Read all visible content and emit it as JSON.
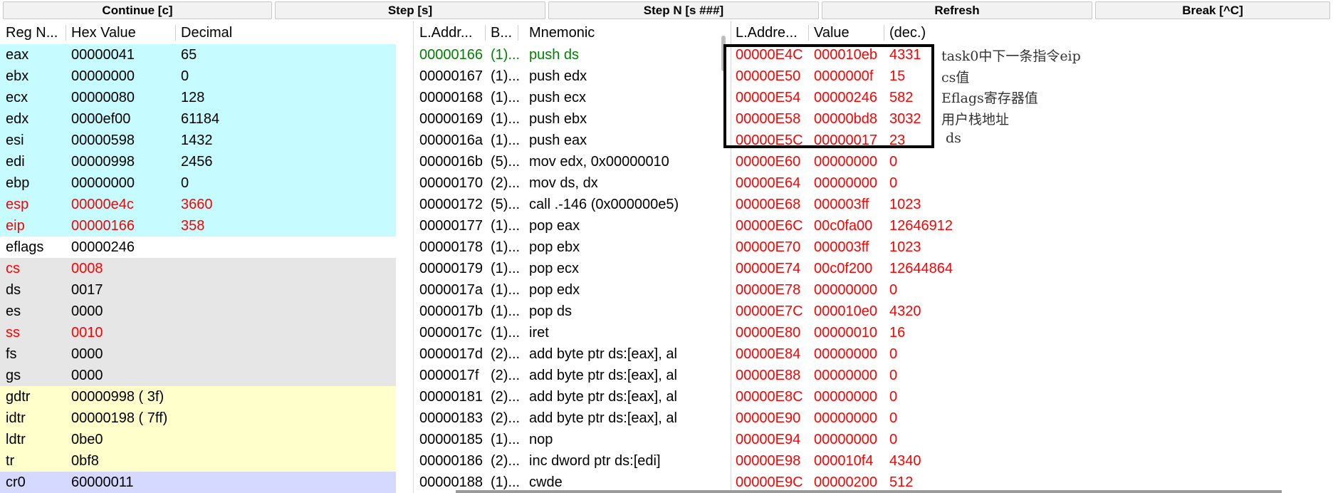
{
  "toolbar": {
    "buttons": [
      "Continue [c]",
      "Step [s]",
      "Step N [s ###]",
      "Refresh",
      "Break [^C]"
    ]
  },
  "registers": {
    "headers": [
      "Reg N...",
      "Hex Value",
      "Decimal"
    ],
    "rows": [
      {
        "name": "eax",
        "hex": "00000041",
        "dec": "65",
        "group": "gp",
        "red": false
      },
      {
        "name": "ebx",
        "hex": "00000000",
        "dec": "0",
        "group": "gp",
        "red": false
      },
      {
        "name": "ecx",
        "hex": "00000080",
        "dec": "128",
        "group": "gp",
        "red": false
      },
      {
        "name": "edx",
        "hex": "0000ef00",
        "dec": "61184",
        "group": "gp",
        "red": false
      },
      {
        "name": "esi",
        "hex": "00000598",
        "dec": "1432",
        "group": "gp",
        "red": false
      },
      {
        "name": "edi",
        "hex": "00000998",
        "dec": "2456",
        "group": "gp",
        "red": false
      },
      {
        "name": "ebp",
        "hex": "00000000",
        "dec": "0",
        "group": "gp",
        "red": false
      },
      {
        "name": "esp",
        "hex": "00000e4c",
        "dec": "3660",
        "group": "gp",
        "red": true
      },
      {
        "name": "eip",
        "hex": "00000166",
        "dec": "358",
        "group": "gp",
        "red": true
      },
      {
        "name": "eflags",
        "hex": "00000246",
        "dec": "",
        "group": "flags",
        "red": false
      },
      {
        "name": "cs",
        "hex": "0008",
        "dec": "",
        "group": "seg",
        "red": true
      },
      {
        "name": "ds",
        "hex": "0017",
        "dec": "",
        "group": "seg",
        "red": false
      },
      {
        "name": "es",
        "hex": "0000",
        "dec": "",
        "group": "seg",
        "red": false
      },
      {
        "name": "ss",
        "hex": "0010",
        "dec": "",
        "group": "seg",
        "red": true
      },
      {
        "name": "fs",
        "hex": "0000",
        "dec": "",
        "group": "seg",
        "red": false
      },
      {
        "name": "gs",
        "hex": "0000",
        "dec": "",
        "group": "seg",
        "red": false
      },
      {
        "name": "gdtr",
        "hex": "00000998 ( 3f)",
        "dec": "",
        "group": "sys",
        "red": false
      },
      {
        "name": "idtr",
        "hex": "00000198 ( 7ff)",
        "dec": "",
        "group": "sys",
        "red": false
      },
      {
        "name": "ldtr",
        "hex": "0be0",
        "dec": "",
        "group": "sys",
        "red": false
      },
      {
        "name": "tr",
        "hex": "0bf8",
        "dec": "",
        "group": "sys",
        "red": false
      },
      {
        "name": "cr0",
        "hex": "60000011",
        "dec": "",
        "group": "ctrl",
        "red": false
      }
    ]
  },
  "group_colors": {
    "gp": "#c6fbff",
    "flags": "#ffffff",
    "seg": "#e6e6e6",
    "sys": "#ffffcc",
    "ctrl": "#d6d9ff"
  },
  "disasm": {
    "headers": [
      "L.Addr...",
      "B...",
      "Mnemonic"
    ],
    "rows": [
      {
        "addr": "00000166",
        "bytes": "(1)...",
        "mnem": "push ds",
        "current": true
      },
      {
        "addr": "00000167",
        "bytes": "(1)...",
        "mnem": "push edx",
        "current": false
      },
      {
        "addr": "00000168",
        "bytes": "(1)...",
        "mnem": "push ecx",
        "current": false
      },
      {
        "addr": "00000169",
        "bytes": "(1)...",
        "mnem": "push ebx",
        "current": false
      },
      {
        "addr": "0000016a",
        "bytes": "(1)...",
        "mnem": "push eax",
        "current": false
      },
      {
        "addr": "0000016b",
        "bytes": "(5)...",
        "mnem": "mov edx, 0x00000010",
        "current": false
      },
      {
        "addr": "00000170",
        "bytes": "(2)...",
        "mnem": "mov ds, dx",
        "current": false
      },
      {
        "addr": "00000172",
        "bytes": "(5)...",
        "mnem": "call .-146  (0x000000e5)",
        "current": false
      },
      {
        "addr": "00000177",
        "bytes": "(1)...",
        "mnem": "pop eax",
        "current": false
      },
      {
        "addr": "00000178",
        "bytes": "(1)...",
        "mnem": "pop ebx",
        "current": false
      },
      {
        "addr": "00000179",
        "bytes": "(1)...",
        "mnem": "pop ecx",
        "current": false
      },
      {
        "addr": "0000017a",
        "bytes": "(1)...",
        "mnem": "pop edx",
        "current": false
      },
      {
        "addr": "0000017b",
        "bytes": "(1)...",
        "mnem": "pop ds",
        "current": false
      },
      {
        "addr": "0000017c",
        "bytes": "(1)...",
        "mnem": "iret",
        "current": false
      },
      {
        "addr": "0000017d",
        "bytes": "(2)...",
        "mnem": "add byte ptr ds:[eax], al",
        "current": false
      },
      {
        "addr": "0000017f",
        "bytes": "(2)...",
        "mnem": "add byte ptr ds:[eax], al",
        "current": false
      },
      {
        "addr": "00000181",
        "bytes": "(2)...",
        "mnem": "add byte ptr ds:[eax], al",
        "current": false
      },
      {
        "addr": "00000183",
        "bytes": "(2)...",
        "mnem": "add byte ptr ds:[eax], al",
        "current": false
      },
      {
        "addr": "00000185",
        "bytes": "(1)...",
        "mnem": "nop",
        "current": false
      },
      {
        "addr": "00000186",
        "bytes": "(2)...",
        "mnem": "inc dword ptr ds:[edi]",
        "current": false
      },
      {
        "addr": "00000188",
        "bytes": "(1)...",
        "mnem": "cwde",
        "current": false
      }
    ]
  },
  "stack": {
    "headers": [
      "L.Addre...",
      "Value",
      "(dec.)"
    ],
    "rows": [
      {
        "addr": "00000E4C",
        "value": "000010eb",
        "dec": "4331"
      },
      {
        "addr": "00000E50",
        "value": "0000000f",
        "dec": "15"
      },
      {
        "addr": "00000E54",
        "value": "00000246",
        "dec": "582"
      },
      {
        "addr": "00000E58",
        "value": "00000bd8",
        "dec": "3032"
      },
      {
        "addr": "00000E5C",
        "value": "00000017",
        "dec": "23"
      },
      {
        "addr": "00000E60",
        "value": "00000000",
        "dec": "0"
      },
      {
        "addr": "00000E64",
        "value": "00000000",
        "dec": "0"
      },
      {
        "addr": "00000E68",
        "value": "000003ff",
        "dec": "1023"
      },
      {
        "addr": "00000E6C",
        "value": "00c0fa00",
        "dec": "12646912"
      },
      {
        "addr": "00000E70",
        "value": "000003ff",
        "dec": "1023"
      },
      {
        "addr": "00000E74",
        "value": "00c0f200",
        "dec": "12644864"
      },
      {
        "addr": "00000E78",
        "value": "00000000",
        "dec": "0"
      },
      {
        "addr": "00000E7C",
        "value": "000010e0",
        "dec": "4320"
      },
      {
        "addr": "00000E80",
        "value": "00000010",
        "dec": "16"
      },
      {
        "addr": "00000E84",
        "value": "00000000",
        "dec": "0"
      },
      {
        "addr": "00000E88",
        "value": "00000000",
        "dec": "0"
      },
      {
        "addr": "00000E8C",
        "value": "00000000",
        "dec": "0"
      },
      {
        "addr": "00000E90",
        "value": "00000000",
        "dec": "0"
      },
      {
        "addr": "00000E94",
        "value": "00000000",
        "dec": "0"
      },
      {
        "addr": "00000E98",
        "value": "000010f4",
        "dec": "4340"
      },
      {
        "addr": "00000E9C",
        "value": "00000200",
        "dec": "512"
      }
    ]
  },
  "annotations": [
    "task0中下一条指令eip",
    "cs值",
    "Eflags寄存器值",
    "用户栈地址",
    "ds"
  ],
  "colors": {
    "changed": "#ff0000",
    "current_instruction": "#008000"
  }
}
